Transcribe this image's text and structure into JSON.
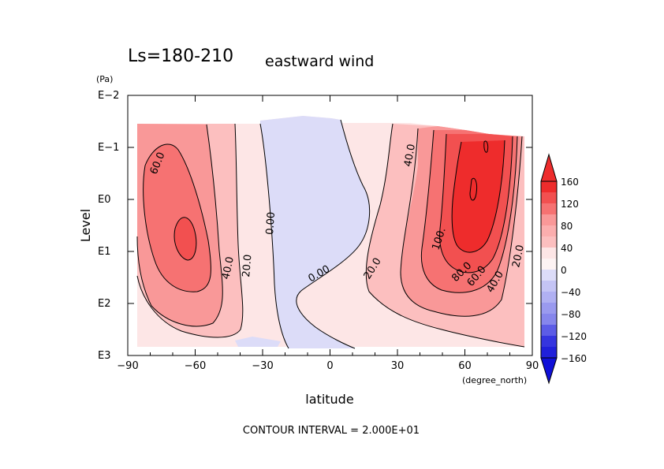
{
  "chart_data": {
    "type": "contour",
    "title": "Ls=180-210",
    "subtitle": "eastward wind",
    "xlabel": "latitude",
    "x_unit": "(degree_north)",
    "ylabel": "Level",
    "y_unit": "(Pa)",
    "xlim": [
      -90,
      90
    ],
    "x_ticks": [
      "−90",
      "−60",
      "−30",
      "0",
      "30",
      "60",
      "90"
    ],
    "y_scale": "log",
    "y_ticks": [
      "E−2",
      "E−1",
      "E0",
      "E1",
      "E2",
      "E3"
    ],
    "contour_interval_note": "CONTOUR INTERVAL = 2.000E+01",
    "contour_labels": [
      "60.0",
      "40.0",
      "20.0",
      "0.00",
      "0.00",
      "20.0",
      "40.0",
      "100.",
      "80.0",
      "60.0",
      "40.0",
      "20.0"
    ],
    "colorbar": {
      "labels": [
        "160",
        "120",
        "80",
        "40",
        "0",
        "−40",
        "−80",
        "−120",
        "−160"
      ],
      "colors": [
        "#ee2c2c",
        "#f25050",
        "#f67272",
        "#f99898",
        "#fcbfbf",
        "#fde6e6",
        "#dcdcf8",
        "#b0b0f2",
        "#8686ec",
        "#5c5ce6",
        "#3535df",
        "#1010d8"
      ]
    },
    "jets": [
      {
        "hemisphere": "south",
        "lat": -65,
        "max_speed": 80
      },
      {
        "hemisphere": "north",
        "lat": 65,
        "max_speed": 120
      }
    ],
    "easterly_band": {
      "lat_range": [
        -30,
        10
      ],
      "value_range": [
        -20,
        0
      ]
    }
  }
}
